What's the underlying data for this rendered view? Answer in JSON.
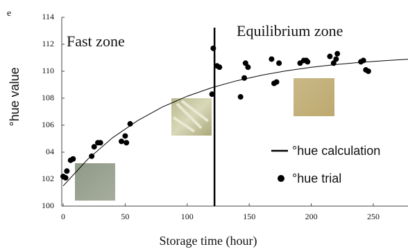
{
  "chart_data": {
    "type": "scatter",
    "corner_text": "e",
    "x_label": "Storage time (hour)",
    "y_label": "°hue value",
    "annotations": [
      "Fast zone",
      "Equilibrium zone"
    ],
    "vline": 122,
    "xlim": [
      0,
      278
    ],
    "ylim": [
      100,
      114
    ],
    "xticks": [
      0,
      50,
      100,
      150,
      200,
      250
    ],
    "yticks": [
      100,
      102,
      {
        "value": 104,
        "label": "04"
      },
      106,
      108,
      110,
      112,
      114
    ],
    "series": [
      {
        "name": "°hue calculation",
        "type": "line",
        "color": "#000000",
        "x": [
          0,
          20,
          40,
          60,
          80,
          100,
          120,
          140,
          160,
          180,
          200,
          220,
          240,
          260,
          280
        ],
        "values": [
          101.5,
          103.49,
          105.08,
          106.34,
          107.35,
          108.15,
          108.79,
          109.3,
          109.71,
          110.03,
          110.29,
          110.5,
          110.66,
          110.79,
          110.9
        ]
      },
      {
        "name": "°hue trial",
        "type": "scatter",
        "color": "#000000",
        "x": [
          0,
          2,
          3,
          6,
          8,
          23,
          25,
          28,
          30,
          47,
          50,
          51,
          54,
          120,
          121,
          124,
          126,
          143,
          146,
          147,
          149,
          168,
          170,
          172,
          174,
          191,
          194,
          196,
          197,
          215,
          218,
          220,
          221,
          240,
          242,
          244,
          246
        ],
        "values": [
          102.2,
          102.1,
          102.6,
          103.4,
          103.5,
          103.7,
          104.4,
          104.7,
          104.7,
          104.8,
          105.2,
          104.7,
          106.1,
          108.3,
          111.7,
          110.4,
          110.3,
          108.1,
          109.5,
          110.6,
          110.3,
          110.9,
          109.1,
          109.2,
          110.6,
          110.6,
          110.8,
          110.8,
          110.7,
          111.1,
          110.6,
          110.9,
          111.3,
          110.7,
          110.8,
          110.1,
          110.0
        ]
      }
    ]
  }
}
